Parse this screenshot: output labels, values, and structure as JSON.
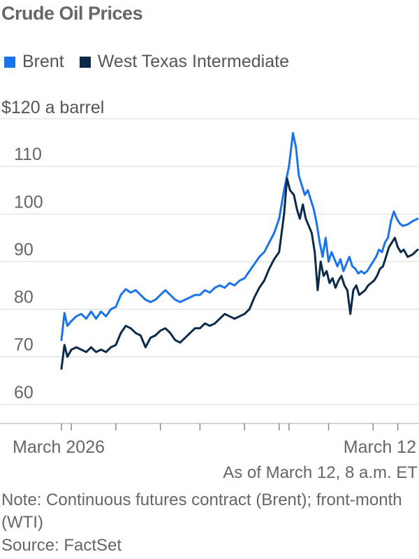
{
  "chart_data": {
    "type": "line",
    "title": "Crude Oil Prices",
    "ylabel_prefix": "$120",
    "ylabel_suffix": "a barrel",
    "ylim": [
      56,
      120
    ],
    "yticks": [
      60,
      70,
      80,
      90,
      100,
      110
    ],
    "xlim": [
      0,
      72
    ],
    "x_tick_labels": [
      {
        "x": 0,
        "label": "March 2026"
      },
      {
        "x": 68,
        "label": "March 12"
      }
    ],
    "x_minor_ticks": [
      0,
      2,
      11,
      20,
      28,
      37,
      44,
      46,
      54,
      63,
      68
    ],
    "legend_position": "top-left",
    "grid": true,
    "series": [
      {
        "name": "Brent",
        "color": "#1a73e8",
        "points": [
          [
            0,
            73.5
          ],
          [
            0.6,
            79.2
          ],
          [
            1.2,
            76.5
          ],
          [
            2,
            77.5
          ],
          [
            3,
            78.5
          ],
          [
            4,
            79
          ],
          [
            5,
            78
          ],
          [
            6,
            79.5
          ],
          [
            7,
            78
          ],
          [
            8,
            79.5
          ],
          [
            9,
            78.5
          ],
          [
            10,
            80
          ],
          [
            11,
            80.5
          ],
          [
            12,
            83
          ],
          [
            13,
            84.2
          ],
          [
            14,
            83.5
          ],
          [
            15,
            84
          ],
          [
            16,
            83
          ],
          [
            17,
            82
          ],
          [
            18,
            81.5
          ],
          [
            19,
            82
          ],
          [
            20,
            83
          ],
          [
            21,
            84
          ],
          [
            22,
            83
          ],
          [
            23,
            82
          ],
          [
            24,
            81.5
          ],
          [
            25,
            82
          ],
          [
            26,
            82.5
          ],
          [
            27,
            83
          ],
          [
            28,
            83
          ],
          [
            29,
            84
          ],
          [
            30,
            83.5
          ],
          [
            31,
            84.5
          ],
          [
            32,
            85
          ],
          [
            33,
            84.5
          ],
          [
            34,
            85.5
          ],
          [
            35,
            85
          ],
          [
            36,
            86
          ],
          [
            37,
            86.5
          ],
          [
            38,
            88
          ],
          [
            39,
            89.5
          ],
          [
            40,
            91
          ],
          [
            41,
            92
          ],
          [
            42,
            94
          ],
          [
            43,
            96
          ],
          [
            44,
            99
          ],
          [
            45,
            105
          ],
          [
            46,
            110
          ],
          [
            46.8,
            117
          ],
          [
            47.4,
            114
          ],
          [
            48,
            108
          ],
          [
            48.6,
            106
          ],
          [
            49.2,
            104
          ],
          [
            49.8,
            105
          ],
          [
            50.4,
            103
          ],
          [
            51,
            101
          ],
          [
            51.6,
            98
          ],
          [
            52.2,
            94
          ],
          [
            52.8,
            91
          ],
          [
            53.4,
            95
          ],
          [
            54,
            90
          ],
          [
            54.6,
            92
          ],
          [
            55.2,
            90.5
          ],
          [
            55.8,
            89
          ],
          [
            56.4,
            90.5
          ],
          [
            57,
            88
          ],
          [
            57.6,
            89.5
          ],
          [
            58.2,
            91
          ],
          [
            58.8,
            89
          ],
          [
            59.4,
            88.5
          ],
          [
            60,
            87.5
          ],
          [
            60.6,
            88
          ],
          [
            61.2,
            87.5
          ],
          [
            61.8,
            88
          ],
          [
            62.4,
            89
          ],
          [
            63,
            90
          ],
          [
            63.6,
            91
          ],
          [
            64.2,
            92.5
          ],
          [
            64.8,
            92
          ],
          [
            65.4,
            94
          ],
          [
            66,
            95
          ],
          [
            66.6,
            98.5
          ],
          [
            67.2,
            100.5
          ],
          [
            67.8,
            99
          ],
          [
            68.4,
            98
          ],
          [
            69,
            97.5
          ],
          [
            70,
            97.8
          ],
          [
            71,
            98.5
          ],
          [
            72,
            99
          ]
        ]
      },
      {
        "name": "West Texas Intermediate",
        "color": "#0b2a4a",
        "points": [
          [
            0,
            67.5
          ],
          [
            0.6,
            72.5
          ],
          [
            1.2,
            70
          ],
          [
            2,
            71.5
          ],
          [
            3,
            72
          ],
          [
            4,
            71.5
          ],
          [
            5,
            71
          ],
          [
            6,
            72
          ],
          [
            7,
            71
          ],
          [
            8,
            71.5
          ],
          [
            9,
            71
          ],
          [
            10,
            72
          ],
          [
            11,
            72.5
          ],
          [
            12,
            75
          ],
          [
            13,
            76.5
          ],
          [
            14,
            76
          ],
          [
            15,
            75
          ],
          [
            16,
            74.5
          ],
          [
            17,
            72
          ],
          [
            18,
            74
          ],
          [
            19,
            74.5
          ],
          [
            20,
            75.5
          ],
          [
            21,
            76
          ],
          [
            22,
            75
          ],
          [
            23,
            73.5
          ],
          [
            24,
            73
          ],
          [
            25,
            74
          ],
          [
            26,
            75
          ],
          [
            27,
            76
          ],
          [
            28,
            76
          ],
          [
            29,
            77
          ],
          [
            30,
            76.5
          ],
          [
            31,
            77
          ],
          [
            32,
            78
          ],
          [
            33,
            79
          ],
          [
            34,
            78.5
          ],
          [
            35,
            78
          ],
          [
            36,
            78.5
          ],
          [
            37,
            79
          ],
          [
            38,
            80
          ],
          [
            39,
            82.5
          ],
          [
            40,
            84.5
          ],
          [
            41,
            86
          ],
          [
            42,
            88.5
          ],
          [
            43,
            90.5
          ],
          [
            44,
            92
          ],
          [
            45,
            100
          ],
          [
            45.6,
            107.5
          ],
          [
            46.2,
            105
          ],
          [
            47,
            104
          ],
          [
            47.6,
            101
          ],
          [
            48.2,
            99
          ],
          [
            48.8,
            102
          ],
          [
            49.4,
            99
          ],
          [
            50,
            97.5
          ],
          [
            50.6,
            96
          ],
          [
            51.2,
            92
          ],
          [
            51.8,
            84
          ],
          [
            52.4,
            90
          ],
          [
            53,
            87
          ],
          [
            53.6,
            88
          ],
          [
            54.2,
            85.5
          ],
          [
            54.8,
            86.5
          ],
          [
            55.4,
            84.5
          ],
          [
            56,
            86
          ],
          [
            56.6,
            87
          ],
          [
            57.2,
            85
          ],
          [
            57.8,
            84
          ],
          [
            58.4,
            79
          ],
          [
            59,
            84
          ],
          [
            59.6,
            85
          ],
          [
            60.2,
            83
          ],
          [
            60.8,
            83.5
          ],
          [
            61.4,
            84
          ],
          [
            62,
            85
          ],
          [
            62.6,
            85.5
          ],
          [
            63.2,
            86
          ],
          [
            63.8,
            87
          ],
          [
            64.4,
            88.5
          ],
          [
            65,
            89
          ],
          [
            65.6,
            91
          ],
          [
            66.2,
            93
          ],
          [
            66.8,
            94
          ],
          [
            67.4,
            95
          ],
          [
            68,
            93
          ],
          [
            68.6,
            92
          ],
          [
            69.2,
            92.5
          ],
          [
            70,
            91
          ],
          [
            71,
            91.5
          ],
          [
            72,
            92.5
          ]
        ]
      }
    ]
  },
  "legend": {
    "brent_label": "Brent",
    "brent_color": "#1a73e8",
    "wti_label": "West Texas Intermediate",
    "wti_color": "#0b2a4a"
  },
  "footer": {
    "as_of": "As of March 12, 8 a.m. ET",
    "note": "Note: Continuous futures contract (Brent); front-month (WTI)",
    "source": "Source: FactSet"
  }
}
